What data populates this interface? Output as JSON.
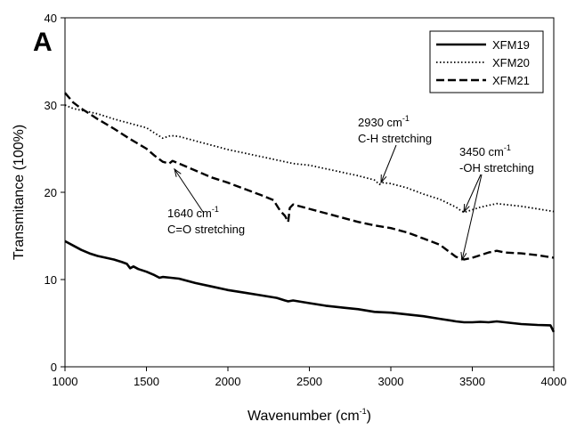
{
  "chart_data": {
    "type": "line",
    "panel_label": "A",
    "xlabel": "Wavenumber (cm",
    "xlabel_sup": "-1",
    "xlabel_suffix": ")",
    "ylabel": "Transmitance (100%)",
    "xlim": [
      1000,
      4000
    ],
    "ylim": [
      0,
      40
    ],
    "xticks": [
      1000,
      1500,
      2000,
      2500,
      3000,
      3500,
      4000
    ],
    "yticks": [
      0,
      10,
      20,
      30,
      40
    ],
    "grid": false,
    "legend_position": "top-right",
    "series": [
      {
        "name": "XFM19",
        "style": "solid",
        "x": [
          1000,
          1050,
          1100,
          1150,
          1200,
          1250,
          1300,
          1350,
          1380,
          1400,
          1420,
          1450,
          1500,
          1550,
          1580,
          1600,
          1650,
          1700,
          1800,
          1900,
          2000,
          2100,
          2200,
          2300,
          2350,
          2370,
          2400,
          2500,
          2600,
          2700,
          2800,
          2900,
          3000,
          3100,
          3200,
          3300,
          3400,
          3450,
          3500,
          3550,
          3600,
          3650,
          3700,
          3800,
          3900,
          3980,
          4000
        ],
        "y": [
          14.4,
          13.9,
          13.4,
          13.0,
          12.7,
          12.5,
          12.3,
          12.0,
          11.8,
          11.3,
          11.5,
          11.2,
          10.9,
          10.5,
          10.2,
          10.3,
          10.2,
          10.1,
          9.6,
          9.2,
          8.8,
          8.5,
          8.2,
          7.9,
          7.6,
          7.5,
          7.6,
          7.3,
          7.0,
          6.8,
          6.6,
          6.3,
          6.2,
          6.0,
          5.8,
          5.5,
          5.2,
          5.1,
          5.1,
          5.15,
          5.1,
          5.2,
          5.1,
          4.9,
          4.8,
          4.75,
          4.0
        ]
      },
      {
        "name": "XFM20",
        "style": "dotted",
        "x": [
          1000,
          1050,
          1100,
          1150,
          1200,
          1300,
          1400,
          1500,
          1550,
          1600,
          1650,
          1700,
          1800,
          1900,
          2000,
          2100,
          2200,
          2300,
          2400,
          2500,
          2600,
          2700,
          2800,
          2900,
          2930,
          2950,
          3000,
          3100,
          3200,
          3300,
          3400,
          3430,
          3450,
          3500,
          3550,
          3600,
          3650,
          3700,
          3800,
          3900,
          4000
        ],
        "y": [
          30.0,
          29.6,
          29.4,
          29.2,
          29.0,
          28.4,
          27.9,
          27.4,
          26.8,
          26.2,
          26.5,
          26.4,
          25.9,
          25.4,
          24.9,
          24.5,
          24.1,
          23.7,
          23.3,
          23.1,
          22.7,
          22.3,
          21.9,
          21.4,
          20.9,
          21.1,
          21.0,
          20.5,
          19.8,
          19.2,
          18.3,
          17.9,
          17.7,
          18.0,
          18.3,
          18.5,
          18.7,
          18.6,
          18.4,
          18.1,
          17.8
        ]
      },
      {
        "name": "XFM21",
        "style": "dashed",
        "x": [
          1000,
          1050,
          1100,
          1150,
          1200,
          1300,
          1400,
          1500,
          1550,
          1600,
          1640,
          1660,
          1700,
          1800,
          1900,
          2000,
          2100,
          2200,
          2280,
          2320,
          2350,
          2370,
          2380,
          2400,
          2500,
          2600,
          2700,
          2800,
          2900,
          3000,
          3100,
          3200,
          3300,
          3400,
          3450,
          3500,
          3550,
          3600,
          3650,
          3700,
          3800,
          3900,
          4000
        ],
        "y": [
          31.4,
          30.3,
          29.6,
          29.0,
          28.4,
          27.3,
          26.1,
          25.0,
          24.2,
          23.5,
          23.3,
          23.6,
          23.3,
          22.5,
          21.7,
          21.1,
          20.4,
          19.7,
          19.1,
          17.9,
          17.3,
          16.6,
          18.2,
          18.6,
          18.1,
          17.6,
          17.1,
          16.6,
          16.2,
          15.9,
          15.4,
          14.7,
          14.0,
          12.6,
          12.3,
          12.5,
          12.8,
          13.1,
          13.3,
          13.1,
          13.0,
          12.8,
          12.5
        ]
      }
    ],
    "annotations": [
      {
        "label": "1640 cm",
        "sup": "-1",
        "line2": "C=O stretching"
      },
      {
        "label": "2930 cm",
        "sup": "-1",
        "line2": "C-H stretching"
      },
      {
        "label": "3450 cm",
        "sup": "-1",
        "line2": "-OH stretching"
      }
    ]
  }
}
